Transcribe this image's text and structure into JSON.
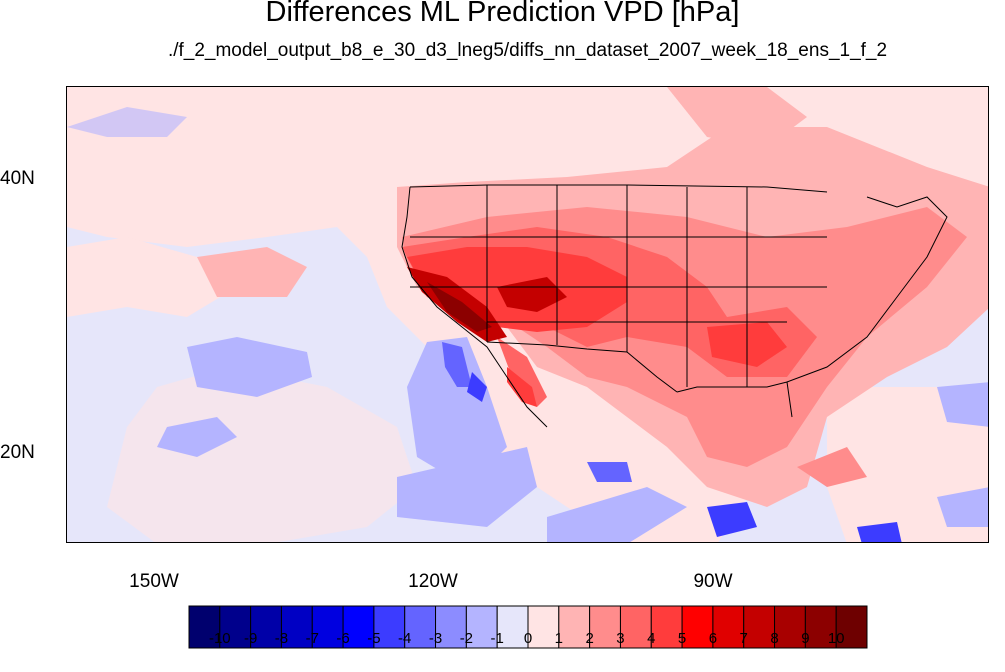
{
  "title": "Differences ML Prediction VPD [hPa]",
  "subtitle": "./f_2_model_output_b8_e_30_d3_lneg5/diffs_nn_dataset_2007_week_18_ens_1_f_2",
  "lat_labels": [
    "40N",
    "20N"
  ],
  "lon_labels": [
    "150W",
    "120W",
    "90W"
  ],
  "colorbar": {
    "labels": [
      "-10",
      "-9",
      "-8",
      "-7",
      "-6",
      "-5",
      "-4",
      "-3",
      "-2",
      "-1",
      "0",
      "1",
      "2",
      "3",
      "4",
      "5",
      "6",
      "7",
      "8",
      "9",
      "10"
    ],
    "colors": [
      "#00006e",
      "#00008c",
      "#0000a8",
      "#0000c4",
      "#0000e0",
      "#0000ff",
      "#3c3cff",
      "#6464ff",
      "#8c8cff",
      "#b4b4ff",
      "#e6e6fa",
      "#ffe4e4",
      "#ffb4b4",
      "#ff8c8c",
      "#ff6464",
      "#ff3c3c",
      "#ff0000",
      "#e00000",
      "#c40000",
      "#a80000",
      "#8c0000",
      "#6e0000"
    ]
  },
  "map_colors": {
    "ocean_light_blue": "#e6e6fa",
    "light_blue": "#b4b4ff",
    "mid_blue": "#8c8cff",
    "pale_pink": "#ffe4e4",
    "pink": "#ffb4b4",
    "salmon": "#ff8c8c",
    "red": "#ff6464",
    "strong_red": "#ff3c3c",
    "dark_red": "#c40000",
    "darkest_red": "#8c0000"
  }
}
